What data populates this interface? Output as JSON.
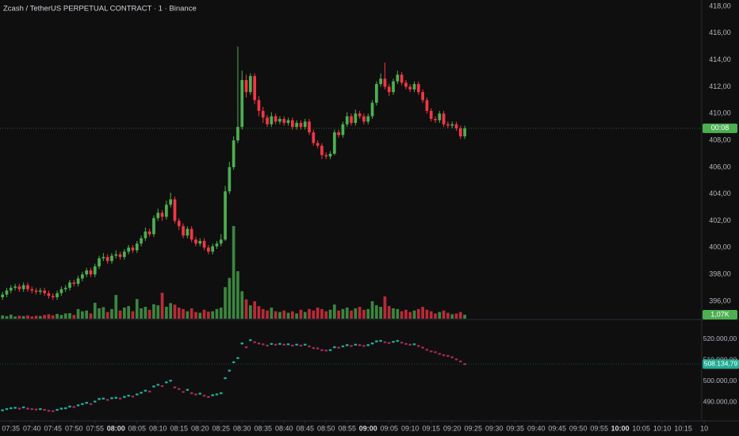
{
  "chart_data": {
    "type": "candlestick",
    "title": "Zcash / TetherUS PERPETUAL CONTRACT · 1 · Binance",
    "x": [
      453,
      454,
      455,
      456,
      457,
      458,
      459,
      460,
      461,
      462,
      463,
      464,
      465,
      466,
      467,
      468,
      469,
      470,
      471,
      472,
      473,
      474,
      475,
      476,
      477,
      478,
      479,
      480,
      481,
      482,
      483,
      484,
      485,
      486,
      487,
      488,
      489,
      490,
      491,
      492,
      493,
      494,
      495,
      496,
      497,
      498,
      499,
      500,
      501,
      502,
      503,
      504,
      505,
      506,
      507,
      508,
      509,
      510,
      511,
      512,
      513,
      514,
      515,
      516,
      517,
      518,
      519,
      520,
      521,
      522,
      523,
      524,
      525,
      526,
      527,
      528,
      529,
      530,
      531,
      532,
      533,
      534,
      535,
      536,
      537,
      538,
      539,
      540,
      541,
      542,
      543,
      544,
      545,
      546,
      547,
      548,
      549,
      550,
      551,
      552,
      553,
      554,
      555,
      556,
      557,
      558,
      559,
      560,
      561,
      562,
      563
    ],
    "open": [
      396.3,
      396.5,
      396.8,
      397.0,
      397.1,
      396.9,
      397.2,
      396.9,
      396.8,
      396.7,
      396.8,
      396.6,
      396.4,
      396.3,
      396.6,
      396.9,
      397.0,
      397.4,
      397.3,
      397.7,
      398.0,
      398.3,
      398.0,
      398.6,
      399.2,
      399.3,
      399.0,
      399.4,
      399.5,
      399.3,
      399.7,
      400.0,
      399.8,
      400.3,
      400.7,
      401.2,
      401.0,
      402.2,
      402.6,
      402.3,
      403.2,
      403.6,
      402.0,
      401.6,
      400.9,
      401.4,
      400.6,
      400.3,
      400.5,
      400.0,
      399.7,
      400.1,
      400.3,
      400.6,
      404.2,
      406.0,
      408.0,
      409.0,
      412.5,
      411.6,
      412.8,
      411.0,
      410.2,
      409.7,
      409.2,
      409.8,
      409.4,
      409.6,
      409.3,
      409.5,
      409.0,
      409.3,
      409.0,
      409.4,
      408.6,
      407.8,
      407.6,
      406.9,
      406.8,
      407.0,
      408.6,
      408.4,
      409.2,
      409.8,
      409.3,
      410.0,
      409.8,
      409.4,
      409.8,
      410.8,
      412.2,
      412.6,
      412.0,
      411.6,
      412.4,
      412.9,
      412.3,
      412.0,
      411.8,
      412.2,
      411.6,
      411.0,
      410.2,
      409.6,
      409.5,
      410.0,
      409.2,
      409.1,
      409.2,
      408.9,
      408.3
    ],
    "high": [
      396.7,
      397.0,
      397.2,
      397.3,
      397.3,
      397.4,
      397.4,
      397.1,
      397.0,
      397.0,
      397.0,
      396.8,
      396.6,
      396.8,
      397.1,
      397.2,
      397.6,
      397.6,
      397.9,
      398.2,
      398.5,
      398.5,
      398.8,
      399.4,
      399.6,
      399.5,
      399.6,
      399.8,
      399.7,
      399.9,
      400.2,
      400.2,
      400.5,
      400.9,
      401.5,
      401.4,
      402.4,
      402.9,
      402.8,
      403.5,
      404.1,
      403.8,
      402.2,
      401.8,
      401.6,
      401.6,
      400.8,
      400.7,
      400.7,
      400.2,
      400.3,
      400.5,
      401.0,
      404.6,
      406.4,
      408.3,
      415.0,
      413.2,
      412.9,
      413.0,
      413.0,
      411.3,
      410.5,
      409.9,
      410.1,
      410.0,
      409.8,
      409.8,
      409.7,
      409.7,
      409.5,
      409.5,
      409.6,
      409.6,
      408.8,
      408.0,
      407.8,
      407.1,
      407.2,
      408.8,
      408.8,
      409.4,
      410.1,
      410.0,
      410.3,
      410.2,
      410.0,
      410.0,
      411.0,
      412.4,
      413.0,
      413.8,
      412.2,
      412.6,
      413.2,
      413.1,
      412.5,
      412.2,
      412.4,
      412.4,
      411.8,
      411.2,
      410.4,
      409.8,
      410.2,
      410.2,
      409.4,
      409.4,
      409.4,
      409.1,
      409.1
    ],
    "low": [
      396.1,
      396.3,
      396.6,
      396.8,
      396.7,
      396.7,
      396.7,
      396.6,
      396.5,
      396.5,
      396.4,
      396.2,
      396.1,
      396.1,
      396.4,
      396.7,
      396.8,
      397.1,
      397.1,
      397.5,
      397.8,
      397.8,
      397.8,
      398.4,
      399.0,
      398.8,
      398.8,
      399.2,
      399.1,
      399.1,
      399.5,
      399.6,
      399.6,
      400.1,
      400.5,
      400.8,
      400.8,
      402.0,
      402.0,
      402.1,
      403.0,
      401.8,
      401.3,
      400.7,
      400.7,
      400.4,
      400.1,
      400.1,
      399.8,
      399.5,
      399.5,
      399.9,
      400.1,
      400.5,
      404.0,
      405.8,
      407.8,
      408.8,
      411.2,
      411.4,
      410.7,
      409.8,
      409.3,
      409.0,
      409.0,
      409.2,
      409.2,
      409.1,
      409.1,
      408.8,
      408.8,
      408.8,
      408.8,
      408.4,
      407.6,
      407.4,
      406.6,
      406.6,
      406.6,
      406.9,
      408.2,
      408.2,
      409.0,
      409.1,
      409.1,
      409.6,
      409.2,
      409.2,
      409.6,
      410.6,
      412.0,
      411.8,
      411.3,
      411.4,
      412.2,
      412.1,
      411.8,
      411.6,
      411.6,
      411.4,
      410.8,
      410.0,
      409.4,
      409.3,
      409.3,
      409.0,
      408.9,
      408.9,
      408.7,
      408.1,
      408.1
    ],
    "close": [
      396.5,
      396.8,
      397.0,
      397.1,
      396.9,
      397.2,
      396.9,
      396.8,
      396.7,
      396.8,
      396.6,
      396.4,
      396.3,
      396.6,
      396.9,
      397.0,
      397.4,
      397.3,
      397.7,
      398.0,
      398.3,
      398.0,
      398.6,
      399.2,
      399.3,
      399.0,
      399.4,
      399.5,
      399.3,
      399.7,
      400.0,
      399.8,
      400.3,
      400.7,
      401.2,
      401.0,
      402.2,
      402.6,
      402.3,
      403.2,
      403.6,
      402.0,
      401.6,
      400.9,
      401.4,
      400.6,
      400.3,
      400.5,
      400.0,
      399.7,
      400.1,
      400.3,
      400.6,
      404.2,
      406.0,
      408.0,
      409.0,
      412.5,
      411.6,
      412.8,
      411.0,
      410.2,
      409.7,
      409.2,
      409.8,
      409.4,
      409.6,
      409.3,
      409.5,
      409.0,
      409.3,
      409.0,
      409.4,
      408.6,
      407.8,
      407.6,
      406.9,
      406.8,
      407.0,
      408.6,
      408.4,
      409.2,
      409.8,
      409.3,
      410.0,
      409.8,
      409.4,
      409.8,
      410.8,
      412.2,
      412.6,
      412.0,
      411.6,
      412.4,
      412.9,
      412.3,
      412.0,
      411.8,
      412.2,
      411.6,
      411.0,
      410.2,
      409.6,
      409.5,
      410.0,
      409.2,
      409.1,
      409.2,
      408.9,
      408.3,
      408.9
    ],
    "up_color": "#4caf50",
    "down_color": "#f23645",
    "xlim": [
      452.4,
      619.4
    ],
    "xticks": [
      {
        "value": 455,
        "label": "07:35"
      },
      {
        "value": 460,
        "label": "07:40"
      },
      {
        "value": 465,
        "label": "07:45"
      },
      {
        "value": 470,
        "label": "07:50"
      },
      {
        "value": 475,
        "label": "07:55"
      },
      {
        "value": 480,
        "label": "08:00",
        "bold": true
      },
      {
        "value": 485,
        "label": "08:05"
      },
      {
        "value": 490,
        "label": "08:10"
      },
      {
        "value": 495,
        "label": "08:15"
      },
      {
        "value": 500,
        "label": "08:20"
      },
      {
        "value": 505,
        "label": "08:25"
      },
      {
        "value": 510,
        "label": "08:30"
      },
      {
        "value": 515,
        "label": "08:35"
      },
      {
        "value": 520,
        "label": "08:40"
      },
      {
        "value": 525,
        "label": "08:45"
      },
      {
        "value": 530,
        "label": "08:50"
      },
      {
        "value": 535,
        "label": "08:55"
      },
      {
        "value": 540,
        "label": "09:00",
        "bold": true
      },
      {
        "value": 545,
        "label": "09:05"
      },
      {
        "value": 550,
        "label": "09:10"
      },
      {
        "value": 555,
        "label": "09:15"
      },
      {
        "value": 560,
        "label": "09:20"
      },
      {
        "value": 565,
        "label": "09:25"
      },
      {
        "value": 570,
        "label": "09:30"
      },
      {
        "value": 575,
        "label": "09:35"
      },
      {
        "value": 580,
        "label": "09:40"
      },
      {
        "value": 585,
        "label": "09:45"
      },
      {
        "value": 590,
        "label": "09:50"
      },
      {
        "value": 595,
        "label": "09:55"
      },
      {
        "value": 600,
        "label": "10:00",
        "bold": true
      },
      {
        "value": 605,
        "label": "10:05"
      },
      {
        "value": 610,
        "label": "10:10"
      },
      {
        "value": 615,
        "label": "10:15"
      },
      {
        "value": 620,
        "label": "10"
      }
    ],
    "ylim": [
      394.7,
      418.47
    ],
    "yticks": [
      {
        "value": 418,
        "label": "418,00"
      },
      {
        "value": 416,
        "label": "416,00"
      },
      {
        "value": 414,
        "label": "414,00"
      },
      {
        "value": 412,
        "label": "412,00"
      },
      {
        "value": 410,
        "label": "410,00"
      },
      {
        "value": 408,
        "label": "408,00"
      },
      {
        "value": 406,
        "label": "406,00"
      },
      {
        "value": 404,
        "label": "404,00"
      },
      {
        "value": 402,
        "label": "402,00"
      },
      {
        "value": 400,
        "label": "400,00"
      },
      {
        "value": 398,
        "label": "398,00"
      },
      {
        "value": 396,
        "label": "396,00"
      }
    ],
    "grid": true,
    "countdown_label": "00:08",
    "volume": {
      "values": [
        900,
        700,
        1100,
        600,
        800,
        700,
        900,
        600,
        800,
        700,
        1000,
        1200,
        900,
        1300,
        1000,
        1400,
        1500,
        1000,
        2600,
        2000,
        2200,
        1400,
        4300,
        2800,
        3100,
        1800,
        2600,
        6400,
        2200,
        3000,
        3400,
        2000,
        5300,
        2800,
        3200,
        2400,
        3900,
        3600,
        7000,
        3200,
        4200,
        3800,
        3000,
        2600,
        2000,
        2800,
        1800,
        1600,
        2400,
        1900,
        2000,
        2600,
        3000,
        8500,
        11000,
        25000,
        12800,
        7400,
        5200,
        3600,
        4700,
        3400,
        2600,
        2200,
        3000,
        2000,
        1800,
        2200,
        1600,
        2000,
        1400,
        2400,
        1800,
        2600,
        2200,
        3000,
        2600,
        2000,
        2400,
        3800,
        2200,
        2600,
        3000,
        2200,
        2800,
        3200,
        2400,
        2600,
        4700,
        3600,
        3200,
        6000,
        3400,
        2800,
        2600,
        2000,
        2400,
        1800,
        2200,
        2600,
        3200,
        2400,
        2000,
        1400,
        1800,
        2200,
        1600,
        1200,
        1400,
        1800,
        1070
      ],
      "ylim": [
        0,
        40000
      ],
      "last_value_label": "1,07K"
    },
    "indicator": {
      "values": [
        486000,
        486600,
        487000,
        487200,
        486800,
        487400,
        486800,
        486600,
        486400,
        486600,
        486200,
        485800,
        485600,
        486200,
        486800,
        487000,
        487800,
        487600,
        488400,
        489000,
        489600,
        489000,
        490200,
        491400,
        491600,
        491000,
        491800,
        492000,
        491600,
        492400,
        493000,
        492600,
        493600,
        494400,
        495400,
        495000,
        497400,
        498200,
        497600,
        499400,
        500200,
        497000,
        496200,
        494800,
        495800,
        494200,
        493600,
        494000,
        493000,
        492400,
        493200,
        493600,
        494200,
        501400,
        505000,
        509000,
        511000,
        518000,
        516200,
        519600,
        518600,
        518000,
        517600,
        517000,
        517800,
        517400,
        517800,
        517400,
        517600,
        517000,
        517400,
        517000,
        517400,
        516600,
        515800,
        515600,
        514800,
        514600,
        514800,
        516200,
        516000,
        516600,
        517200,
        516800,
        517400,
        517200,
        516800,
        517200,
        518000,
        519000,
        519200,
        518600,
        518200,
        518800,
        519200,
        518400,
        517800,
        517400,
        517600,
        516800,
        516000,
        515000,
        514200,
        513800,
        513000,
        512400,
        512000,
        511400,
        510400,
        509400,
        508134.79
      ],
      "ylim": [
        481300,
        529100
      ],
      "yticks": [
        {
          "value": 520000,
          "label": "520.000,00"
        },
        {
          "value": 510000,
          "label": "510.000,00"
        },
        {
          "value": 500000,
          "label": "500.000,00"
        },
        {
          "value": 490000,
          "label": "490.000,00"
        }
      ],
      "up_color": "#22ab94",
      "down_color": "#a3295a",
      "last_value_label": "508.134,79"
    }
  }
}
